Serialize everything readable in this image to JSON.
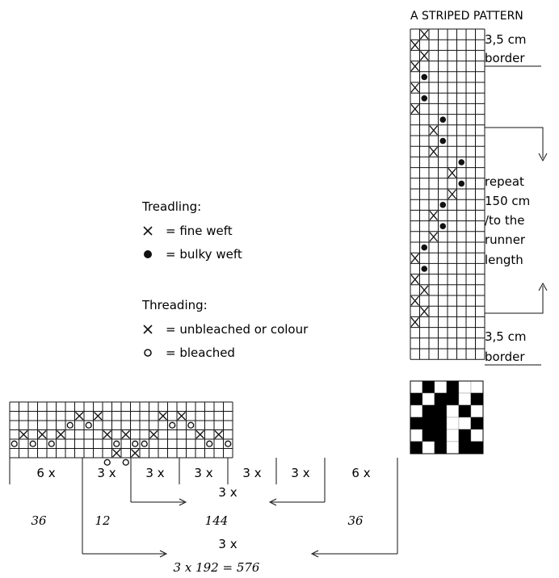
{
  "title": "A STRIPED PATTERN",
  "treadling": {
    "heading": "Treadling:",
    "items": [
      {
        "symbol": "cross",
        "text": "= fine weft"
      },
      {
        "symbol": "dot",
        "text": "= bulky weft"
      }
    ]
  },
  "threading": {
    "heading": "Threading:",
    "items": [
      {
        "symbol": "cross",
        "text": "= unbleached or colour"
      },
      {
        "symbol": "circle",
        "text": "= bleached"
      }
    ]
  },
  "right_notes": {
    "top_border": [
      "3,5 cm",
      "border"
    ],
    "repeat": [
      "repeat",
      "150 cm",
      "/to the",
      "runner",
      "length"
    ],
    "bottom_border": [
      "3,5 cm",
      "border"
    ]
  },
  "threading_counts": [
    "6 x",
    "3 x",
    "3 x",
    "3 x",
    "3 x",
    "3 x",
    "6 x"
  ],
  "inner_repeat_label": "3 x",
  "numbers": {
    "left": "36",
    "left_inner": "12",
    "middle": "144",
    "right": "36"
  },
  "outer_repeat_label": "3 x",
  "total": "3 x 192 = 576",
  "threading_grid": {
    "cols": 24,
    "rows": 6,
    "cells": [
      {
        "r": 1,
        "c": 7,
        "m": "X"
      },
      {
        "r": 1,
        "c": 9,
        "m": "X"
      },
      {
        "r": 1,
        "c": 16,
        "m": "X"
      },
      {
        "r": 1,
        "c": 18,
        "m": "X"
      },
      {
        "r": 2,
        "c": 6,
        "m": "O"
      },
      {
        "r": 2,
        "c": 8,
        "m": "O"
      },
      {
        "r": 2,
        "c": 17,
        "m": "O"
      },
      {
        "r": 2,
        "c": 19,
        "m": "O"
      },
      {
        "r": 3,
        "c": 1,
        "m": "X"
      },
      {
        "r": 3,
        "c": 3,
        "m": "X"
      },
      {
        "r": 3,
        "c": 5,
        "m": "X"
      },
      {
        "r": 3,
        "c": 10,
        "m": "X"
      },
      {
        "r": 3,
        "c": 12,
        "m": "X"
      },
      {
        "r": 3,
        "c": 15,
        "m": "X"
      },
      {
        "r": 3,
        "c": 20,
        "m": "X"
      },
      {
        "r": 3,
        "c": 22,
        "m": "X"
      },
      {
        "r": 4,
        "c": 0,
        "m": "O"
      },
      {
        "r": 4,
        "c": 2,
        "m": "O"
      },
      {
        "r": 4,
        "c": 4,
        "m": "O"
      },
      {
        "r": 4,
        "c": 11,
        "m": "O"
      },
      {
        "r": 4,
        "c": 13,
        "m": "O"
      },
      {
        "r": 4,
        "c": 14,
        "m": "O"
      },
      {
        "r": 4,
        "c": 21,
        "m": "O"
      },
      {
        "r": 4,
        "c": 23,
        "m": "O"
      },
      {
        "r": 5,
        "c": 11,
        "m": "X"
      },
      {
        "r": 5,
        "c": 13,
        "m": "X"
      },
      {
        "r": 6,
        "c": 10,
        "m": "O"
      },
      {
        "r": 6,
        "c": 12,
        "m": "O"
      }
    ]
  },
  "treadling_grid": {
    "cols": 8,
    "rows": 31,
    "cells": [
      {
        "r": 0,
        "c": 1,
        "m": "X"
      },
      {
        "r": 1,
        "c": 0,
        "m": "X"
      },
      {
        "r": 2,
        "c": 1,
        "m": "X"
      },
      {
        "r": 3,
        "c": 0,
        "m": "X"
      },
      {
        "r": 4,
        "c": 1,
        "m": "D"
      },
      {
        "r": 5,
        "c": 0,
        "m": "X"
      },
      {
        "r": 6,
        "c": 1,
        "m": "D"
      },
      {
        "r": 7,
        "c": 0,
        "m": "X"
      },
      {
        "r": 8,
        "c": 3,
        "m": "D"
      },
      {
        "r": 9,
        "c": 2,
        "m": "X"
      },
      {
        "r": 10,
        "c": 3,
        "m": "D"
      },
      {
        "r": 11,
        "c": 2,
        "m": "X"
      },
      {
        "r": 12,
        "c": 5,
        "m": "D"
      },
      {
        "r": 13,
        "c": 4,
        "m": "X"
      },
      {
        "r": 14,
        "c": 5,
        "m": "D"
      },
      {
        "r": 15,
        "c": 4,
        "m": "X"
      },
      {
        "r": 16,
        "c": 3,
        "m": "D"
      },
      {
        "r": 17,
        "c": 2,
        "m": "X"
      },
      {
        "r": 18,
        "c": 3,
        "m": "D"
      },
      {
        "r": 19,
        "c": 2,
        "m": "X"
      },
      {
        "r": 20,
        "c": 1,
        "m": "D"
      },
      {
        "r": 21,
        "c": 0,
        "m": "X"
      },
      {
        "r": 22,
        "c": 1,
        "m": "D"
      },
      {
        "r": 23,
        "c": 0,
        "m": "X"
      },
      {
        "r": 24,
        "c": 1,
        "m": "X"
      },
      {
        "r": 25,
        "c": 0,
        "m": "X"
      },
      {
        "r": 26,
        "c": 1,
        "m": "X"
      },
      {
        "r": 27,
        "c": 0,
        "m": "X"
      }
    ]
  },
  "drawdown": {
    "rows": 6,
    "cols": 6,
    "cells": [
      [
        0,
        1,
        0,
        1,
        0,
        0
      ],
      [
        1,
        0,
        1,
        1,
        0,
        1
      ],
      [
        0,
        1,
        1,
        0,
        1,
        0
      ],
      [
        1,
        1,
        1,
        0,
        0,
        1
      ],
      [
        0,
        1,
        1,
        0,
        1,
        0
      ],
      [
        1,
        0,
        1,
        0,
        1,
        1
      ]
    ]
  }
}
